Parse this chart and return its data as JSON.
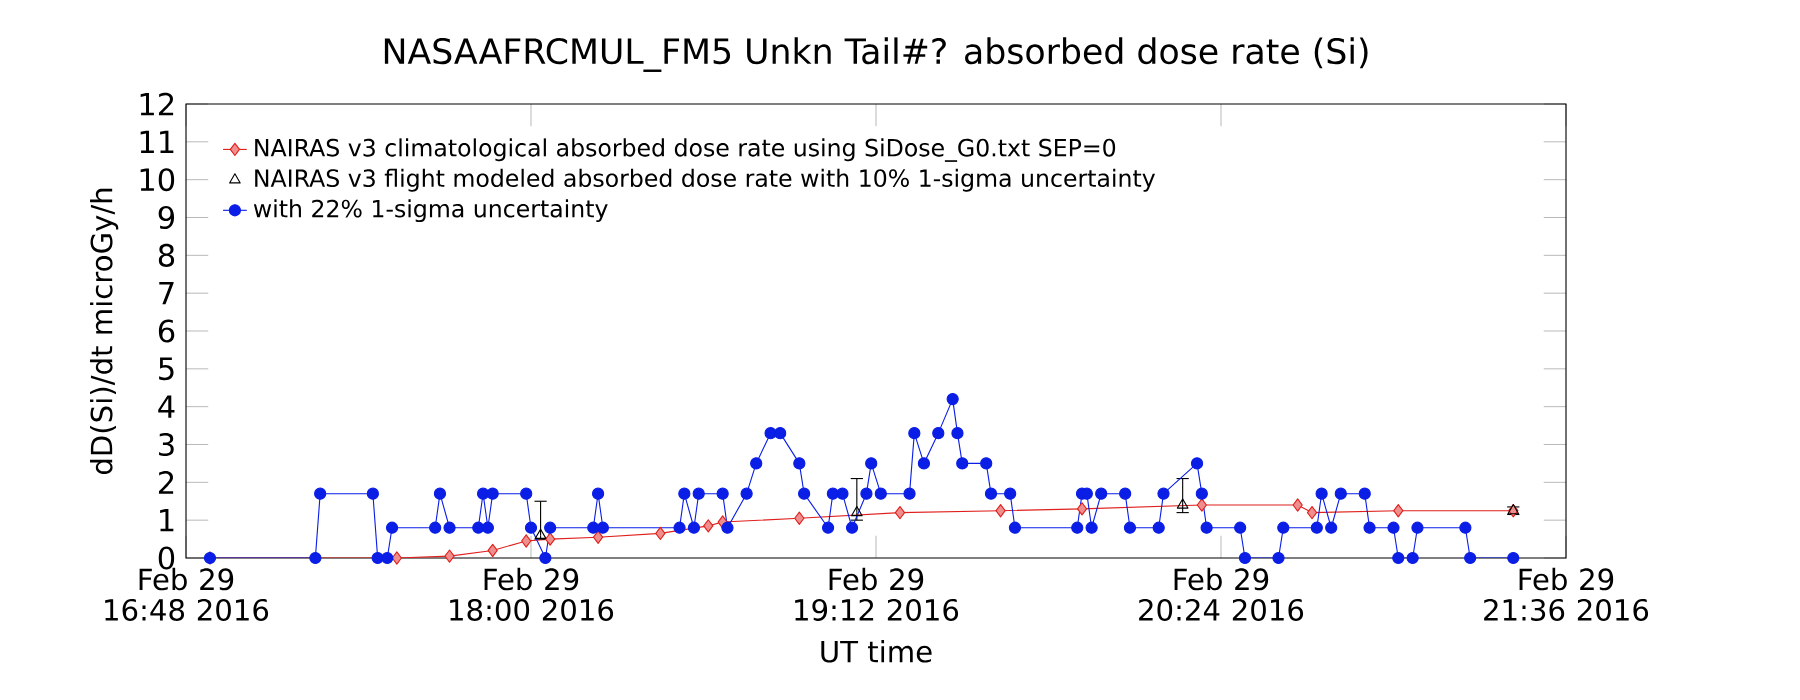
{
  "chart_data": {
    "type": "line",
    "title": "NASAAFRCMUL_FM5 Unkn Tail#? absorbed dose rate (Si)",
    "xlabel": "UT time",
    "ylabel": "dD(Si)/dt microGy/h",
    "xlim": [
      "2016-02-29T16:48",
      "2016-02-29T21:36"
    ],
    "ylim": [
      0,
      12
    ],
    "xticks": [
      {
        "value": "2016-02-29T16:48",
        "label": "Feb 29 16:48 2016"
      },
      {
        "value": "2016-02-29T18:00",
        "label": "Feb 29 18:00 2016"
      },
      {
        "value": "2016-02-29T19:12",
        "label": "Feb 29 19:12 2016"
      },
      {
        "value": "2016-02-29T20:24",
        "label": "Feb 29 20:24 2016"
      },
      {
        "value": "2016-02-29T21:36",
        "label": "Feb 29 21:36 2016"
      }
    ],
    "yticks": [
      0,
      1,
      2,
      3,
      4,
      5,
      6,
      7,
      8,
      9,
      10,
      11,
      12
    ],
    "legend": "top left",
    "series": [
      {
        "name": "NAIRAS v3 climatological absorbed dose rate using SiDose_G0.txt SEP=0",
        "marker": "diamond",
        "color": "#e0201c",
        "x": [
          "2016-02-29T16:53",
          "2016-02-29T17:32",
          "2016-02-29T17:43",
          "2016-02-29T17:52",
          "2016-02-29T17:59",
          "2016-02-29T18:04",
          "2016-02-29T18:14",
          "2016-02-29T18:27",
          "2016-02-29T18:37",
          "2016-02-29T18:40",
          "2016-02-29T18:56",
          "2016-02-29T19:17",
          "2016-02-29T19:38",
          "2016-02-29T19:55",
          "2016-02-29T20:20",
          "2016-02-29T20:40",
          "2016-02-29T20:43",
          "2016-02-29T21:01",
          "2016-02-29T21:25"
        ],
        "values": [
          0,
          0,
          0.05,
          0.2,
          0.45,
          0.5,
          0.55,
          0.65,
          0.85,
          0.95,
          1.05,
          1.2,
          1.25,
          1.3,
          1.4,
          1.4,
          1.2,
          1.25,
          1.25
        ]
      },
      {
        "name": "NAIRAS v3 flight modeled absorbed dose rate with 10% 1-sigma uncertainty",
        "type": "scatter",
        "marker": "triangle",
        "color": "#000000",
        "x": [
          "2016-02-29T18:02",
          "2016-02-29T19:08",
          "2016-02-29T20:16",
          "2016-02-29T21:25"
        ],
        "values": [
          0.6,
          1.2,
          1.4,
          1.25
        ],
        "errors": [
          [
            0.5,
            1.5
          ],
          [
            1.0,
            2.1
          ],
          [
            1.2,
            2.1
          ],
          [
            1.15,
            1.35
          ]
        ]
      },
      {
        "name": "with 22% 1-sigma uncertainty",
        "marker": "circle",
        "color": "#0a1ee6",
        "x": [
          "2016-02-29T16:53",
          "2016-02-29T17:15",
          "2016-02-29T17:16",
          "2016-02-29T17:27",
          "2016-02-29T17:28",
          "2016-02-29T17:30",
          "2016-02-29T17:31",
          "2016-02-29T17:40",
          "2016-02-29T17:41",
          "2016-02-29T17:43",
          "2016-02-29T17:49",
          "2016-02-29T17:50",
          "2016-02-29T17:51",
          "2016-02-29T17:52",
          "2016-02-29T17:59",
          "2016-02-29T18:00",
          "2016-02-29T18:03",
          "2016-02-29T18:04",
          "2016-02-29T18:13",
          "2016-02-29T18:14",
          "2016-02-29T18:15",
          "2016-02-29T18:31",
          "2016-02-29T18:32",
          "2016-02-29T18:34",
          "2016-02-29T18:35",
          "2016-02-29T18:40",
          "2016-02-29T18:41",
          "2016-02-29T18:45",
          "2016-02-29T18:47",
          "2016-02-29T18:50",
          "2016-02-29T18:52",
          "2016-02-29T18:56",
          "2016-02-29T18:57",
          "2016-02-29T19:02",
          "2016-02-29T19:03",
          "2016-02-29T19:05",
          "2016-02-29T19:07",
          "2016-02-29T19:10",
          "2016-02-29T19:11",
          "2016-02-29T19:13",
          "2016-02-29T19:19",
          "2016-02-29T19:20",
          "2016-02-29T19:22",
          "2016-02-29T19:25",
          "2016-02-29T19:28",
          "2016-02-29T19:29",
          "2016-02-29T19:30",
          "2016-02-29T19:35",
          "2016-02-29T19:36",
          "2016-02-29T19:40",
          "2016-02-29T19:41",
          "2016-02-29T19:54",
          "2016-02-29T19:55",
          "2016-02-29T19:56",
          "2016-02-29T19:57",
          "2016-02-29T19:59",
          "2016-02-29T20:04",
          "2016-02-29T20:05",
          "2016-02-29T20:11",
          "2016-02-29T20:12",
          "2016-02-29T20:19",
          "2016-02-29T20:20",
          "2016-02-29T20:21",
          "2016-02-29T20:28",
          "2016-02-29T20:29",
          "2016-02-29T20:36",
          "2016-02-29T20:37",
          "2016-02-29T20:44",
          "2016-02-29T20:45",
          "2016-02-29T20:47",
          "2016-02-29T20:49",
          "2016-02-29T20:54",
          "2016-02-29T20:55",
          "2016-02-29T21:00",
          "2016-02-29T21:01",
          "2016-02-29T21:04",
          "2016-02-29T21:05",
          "2016-02-29T21:15",
          "2016-02-29T21:16",
          "2016-02-29T21:25"
        ],
        "values": [
          0,
          0,
          1.7,
          1.7,
          0,
          0,
          0.8,
          0.8,
          1.7,
          0.8,
          0.8,
          1.7,
          0.8,
          1.7,
          1.7,
          0.8,
          0,
          0.8,
          0.8,
          1.7,
          0.8,
          0.8,
          1.7,
          0.8,
          1.7,
          1.7,
          0.8,
          1.7,
          2.5,
          3.3,
          3.3,
          2.5,
          1.7,
          0.8,
          1.7,
          1.7,
          0.8,
          1.7,
          2.5,
          1.7,
          1.7,
          3.3,
          2.5,
          3.3,
          4.2,
          3.3,
          2.5,
          2.5,
          1.7,
          1.7,
          0.8,
          0.8,
          1.7,
          1.7,
          0.8,
          1.7,
          1.7,
          0.8,
          0.8,
          1.7,
          2.5,
          1.7,
          0.8,
          0.8,
          0,
          0,
          0.8,
          0.8,
          1.7,
          0.8,
          1.7,
          1.7,
          0.8,
          0.8,
          0,
          0,
          0.8,
          0.8,
          0,
          0
        ]
      }
    ]
  }
}
